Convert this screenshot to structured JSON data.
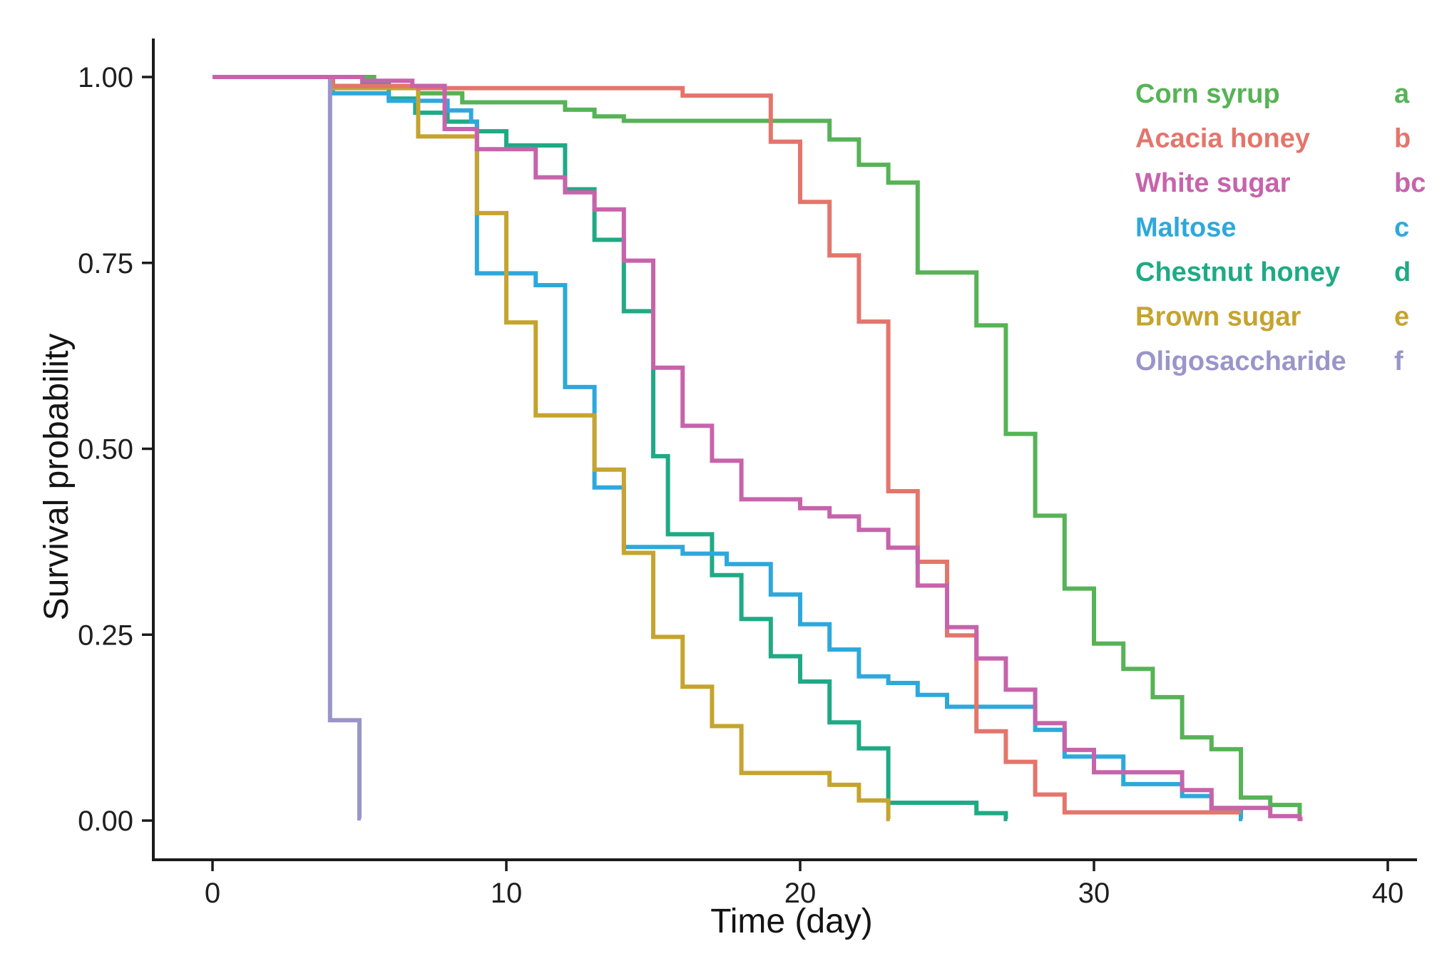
{
  "chart_data": {
    "type": "line",
    "variant": "kaplan_meier_survival_step_curves",
    "title": "",
    "xlabel": "Time (day)",
    "ylabel": "Survival probability",
    "xlim": [
      -2,
      41.5
    ],
    "ylim": [
      0,
      1.02
    ],
    "grid": false,
    "legend_position": "top-right",
    "x_ticks": [
      {
        "v": 0,
        "label": "0"
      },
      {
        "v": 10,
        "label": "10"
      },
      {
        "v": 20,
        "label": "20"
      },
      {
        "v": 30,
        "label": "30"
      },
      {
        "v": 40,
        "label": "40"
      }
    ],
    "y_ticks": [
      {
        "v": 0.0,
        "label": "0.00"
      },
      {
        "v": 0.25,
        "label": "0.25"
      },
      {
        "v": 0.5,
        "label": "0.50"
      },
      {
        "v": 0.75,
        "label": "0.75"
      },
      {
        "v": 1.0,
        "label": "1.00"
      }
    ],
    "series": [
      {
        "name": "Corn syrup",
        "significance_letter": "a",
        "color": "#56B356",
        "z": 1,
        "start": [
          0,
          1.0
        ],
        "end_day": 37.05,
        "points": [
          [
            5.5,
            0.988
          ],
          [
            7,
            0.978
          ],
          [
            8.5,
            0.966
          ],
          [
            12,
            0.956
          ],
          [
            13,
            0.947
          ],
          [
            14,
            0.941
          ],
          [
            21,
            0.916
          ],
          [
            22,
            0.882
          ],
          [
            23,
            0.858
          ],
          [
            24,
            0.737
          ],
          [
            26,
            0.666
          ],
          [
            27,
            0.52
          ],
          [
            28,
            0.41
          ],
          [
            29,
            0.312
          ],
          [
            30,
            0.238
          ],
          [
            31,
            0.204
          ],
          [
            32,
            0.166
          ],
          [
            33,
            0.112
          ],
          [
            34,
            0.096
          ],
          [
            35,
            0.031
          ],
          [
            36,
            0.021
          ],
          [
            37,
            0.003
          ]
        ]
      },
      {
        "name": "Acacia honey",
        "significance_letter": "b",
        "color": "#E4756B",
        "z": 5,
        "start": [
          0,
          1.0
        ],
        "end_day": 35.0,
        "points": [
          [
            4.1,
            0.988
          ],
          [
            7,
            0.985
          ],
          [
            16,
            0.975
          ],
          [
            19,
            0.913
          ],
          [
            20,
            0.832
          ],
          [
            21,
            0.76
          ],
          [
            22,
            0.671
          ],
          [
            23,
            0.443
          ],
          [
            24,
            0.348
          ],
          [
            25,
            0.249
          ],
          [
            26,
            0.12
          ],
          [
            27,
            0.079
          ],
          [
            28,
            0.035
          ],
          [
            29,
            0.011
          ]
        ]
      },
      {
        "name": "White sugar",
        "significance_letter": "bc",
        "color": "#C763AB",
        "z": 7,
        "start": [
          0,
          1.0
        ],
        "end_day": 37.1,
        "points": [
          [
            5.1,
            0.995
          ],
          [
            6.8,
            0.988
          ],
          [
            7.9,
            0.93
          ],
          [
            9,
            0.903
          ],
          [
            11,
            0.865
          ],
          [
            12,
            0.845
          ],
          [
            13,
            0.822
          ],
          [
            14,
            0.753
          ],
          [
            15,
            0.609
          ],
          [
            16,
            0.531
          ],
          [
            17,
            0.484
          ],
          [
            18,
            0.432
          ],
          [
            20,
            0.42
          ],
          [
            21,
            0.409
          ],
          [
            22,
            0.391
          ],
          [
            23,
            0.367
          ],
          [
            24,
            0.316
          ],
          [
            25,
            0.26
          ],
          [
            26,
            0.218
          ],
          [
            27,
            0.176
          ],
          [
            28,
            0.131
          ],
          [
            29,
            0.095
          ],
          [
            30,
            0.065
          ],
          [
            33,
            0.041
          ],
          [
            34,
            0.017
          ],
          [
            36,
            0.006
          ],
          [
            37,
            0.002
          ]
        ]
      },
      {
        "name": "Maltose",
        "significance_letter": "c",
        "color": "#2EA8DC",
        "z": 3,
        "start": [
          0,
          1.0
        ],
        "end_day": 35.05,
        "points": [
          [
            4.1,
            0.978
          ],
          [
            6,
            0.968
          ],
          [
            8,
            0.955
          ],
          [
            8.8,
            0.94
          ],
          [
            9,
            0.736
          ],
          [
            11,
            0.72
          ],
          [
            12,
            0.583
          ],
          [
            13,
            0.448
          ],
          [
            14,
            0.368
          ],
          [
            16,
            0.359
          ],
          [
            17.5,
            0.345
          ],
          [
            19,
            0.304
          ],
          [
            20,
            0.264
          ],
          [
            21,
            0.23
          ],
          [
            22,
            0.194
          ],
          [
            23,
            0.185
          ],
          [
            24,
            0.169
          ],
          [
            25,
            0.153
          ],
          [
            28,
            0.122
          ],
          [
            29,
            0.086
          ],
          [
            31,
            0.049
          ],
          [
            33,
            0.033
          ],
          [
            34,
            0.015
          ],
          [
            35,
            0.002
          ]
        ]
      },
      {
        "name": "Chestnut honey",
        "significance_letter": "d",
        "color": "#1FAA85",
        "z": 2,
        "start": [
          0,
          1.0
        ],
        "end_day": 27.05,
        "points": [
          [
            5.1,
            0.99
          ],
          [
            6,
            0.971
          ],
          [
            6.9,
            0.952
          ],
          [
            8,
            0.94
          ],
          [
            9,
            0.927
          ],
          [
            10,
            0.908
          ],
          [
            12,
            0.849
          ],
          [
            13,
            0.781
          ],
          [
            14,
            0.685
          ],
          [
            15,
            0.49
          ],
          [
            15.5,
            0.385
          ],
          [
            17,
            0.33
          ],
          [
            18,
            0.271
          ],
          [
            19,
            0.221
          ],
          [
            20,
            0.187
          ],
          [
            21,
            0.132
          ],
          [
            22,
            0.097
          ],
          [
            23,
            0.024
          ],
          [
            26,
            0.01
          ],
          [
            27,
            0.002
          ]
        ]
      },
      {
        "name": "Brown sugar",
        "significance_letter": "e",
        "color": "#C5A42F",
        "z": 4,
        "start": [
          0,
          1.0
        ],
        "end_day": 23.05,
        "points": [
          [
            4.1,
            0.985
          ],
          [
            7,
            0.92
          ],
          [
            9,
            0.817
          ],
          [
            10,
            0.67
          ],
          [
            11,
            0.545
          ],
          [
            13,
            0.472
          ],
          [
            14,
            0.36
          ],
          [
            15,
            0.247
          ],
          [
            16,
            0.18
          ],
          [
            17,
            0.127
          ],
          [
            18,
            0.064
          ],
          [
            21,
            0.048
          ],
          [
            22,
            0.027
          ],
          [
            23,
            0.002
          ]
        ]
      },
      {
        "name": "Oligosaccharide",
        "significance_letter": "f",
        "color": "#9A95C9",
        "z": 6,
        "start": [
          0,
          1.0
        ],
        "end_day": 5.05,
        "points": [
          [
            4,
            0.135
          ],
          [
            5,
            0.003
          ]
        ]
      }
    ]
  }
}
